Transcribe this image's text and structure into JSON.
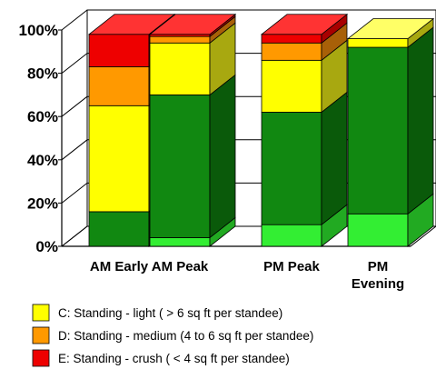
{
  "chart_data": {
    "type": "bar",
    "stacked": true,
    "three_d": true,
    "categories": [
      [
        "AM Early"
      ],
      [
        "AM Peak"
      ],
      [
        "PM Peak"
      ],
      [
        "PM",
        "Evening"
      ]
    ],
    "yticks": [
      "0%",
      "20%",
      "40%",
      "60%",
      "80%",
      "100%"
    ],
    "ylim": [
      0,
      100
    ],
    "grid": true,
    "legend_position": "bottom",
    "series": [
      {
        "key": "seated",
        "color": "#33ee33",
        "side": "#22aa22",
        "top": "#66ff66",
        "values": [
          0,
          4,
          10,
          15
        ]
      },
      {
        "key": "standing_ok",
        "color": "#118811",
        "side": "#0a5a0a",
        "top": "#22aa22",
        "values": [
          16,
          66,
          52,
          77
        ]
      },
      {
        "name": "C: Standing - light ( > 6 sq ft per standee)",
        "color": "#ffff00",
        "side": "#a8a810",
        "top": "#ffff66",
        "values": [
          49,
          24,
          24,
          4
        ]
      },
      {
        "name": "D: Standing - medium (4 to 6 sq ft per standee)",
        "color": "#ff9900",
        "side": "#a86008",
        "top": "#ffbb44",
        "values": [
          18,
          3,
          8,
          0
        ]
      },
      {
        "name": "E: Standing - crush ( < 4 sq ft per standee)",
        "color": "#ee0000",
        "side": "#a80000",
        "top": "#ff3333",
        "values": [
          15,
          1,
          4,
          0
        ]
      }
    ],
    "legend": [
      {
        "label": "C: Standing - light ( > 6 sq ft per standee)",
        "color": "#ffff00"
      },
      {
        "label": "D: Standing - medium (4 to 6 sq ft per standee)",
        "color": "#ff9900"
      },
      {
        "label": "E: Standing - crush ( < 4 sq ft per standee)",
        "color": "#ee0000"
      }
    ]
  }
}
